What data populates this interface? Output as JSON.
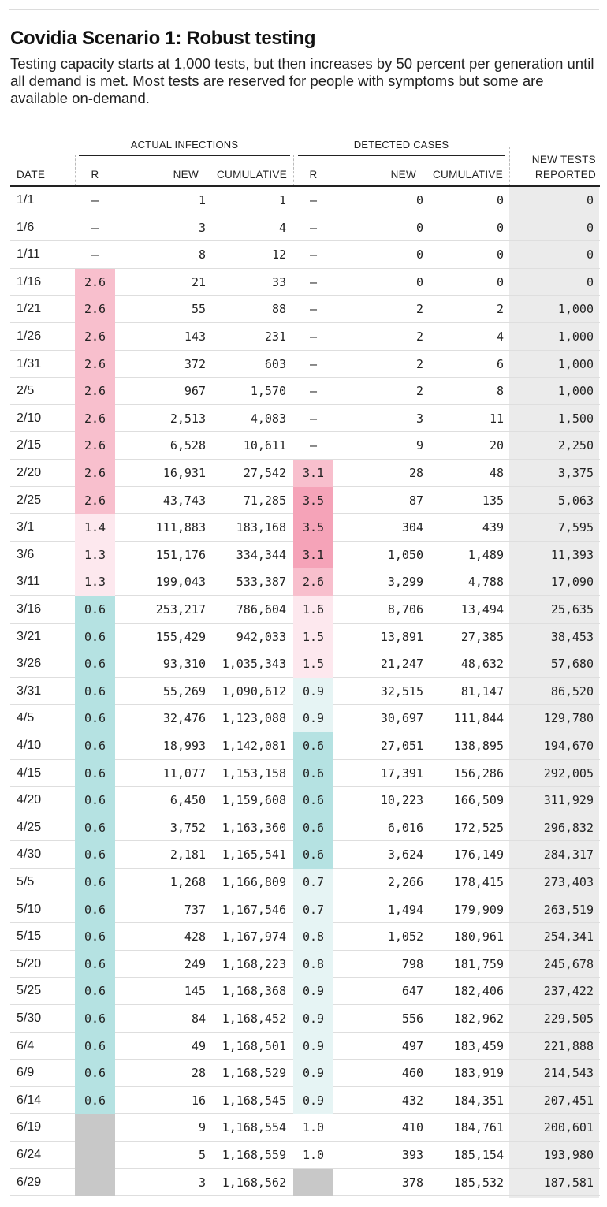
{
  "title": "Covidia Scenario 1: Robust testing",
  "subtitle": "Testing capacity starts at 1,000 tests, but then increases by 50 percent per generation until all demand is met. Most tests are reserved for people with symptoms but some are available on-demand.",
  "groups": {
    "actual": "ACTUAL INFECTIONS",
    "detected": "DETECTED CASES"
  },
  "headers": {
    "date": "DATE",
    "r": "R",
    "new": "NEW",
    "cumulative": "CUMULATIVE",
    "tests_line1": "NEW TESTS",
    "tests_line2": "REPORTED"
  },
  "colors": {
    "pink_strong": "#f5a3b8",
    "pink": "#f8bfcd",
    "pink_light": "#fde8ee",
    "teal": "#b5e2e2",
    "teal_light": "#e6f4f4",
    "gray": "#c8c8c8",
    "tests_bg": "#ebebeb"
  },
  "chart_data": {
    "type": "table",
    "columns": [
      "DATE",
      "ACTUAL INFECTIONS R",
      "ACTUAL INFECTIONS NEW",
      "ACTUAL INFECTIONS CUMULATIVE",
      "DETECTED CASES R",
      "DETECTED CASES NEW",
      "DETECTED CASES CUMULATIVE",
      "NEW TESTS REPORTED"
    ],
    "rows": [
      [
        "1/1",
        "–",
        "1",
        "1",
        "–",
        "0",
        "0",
        "0"
      ],
      [
        "1/6",
        "–",
        "3",
        "4",
        "–",
        "0",
        "0",
        "0"
      ],
      [
        "1/11",
        "–",
        "8",
        "12",
        "–",
        "0",
        "0",
        "0"
      ],
      [
        "1/16",
        "2.6",
        "21",
        "33",
        "–",
        "0",
        "0",
        "0"
      ],
      [
        "1/21",
        "2.6",
        "55",
        "88",
        "–",
        "2",
        "2",
        "1,000"
      ],
      [
        "1/26",
        "2.6",
        "143",
        "231",
        "–",
        "2",
        "4",
        "1,000"
      ],
      [
        "1/31",
        "2.6",
        "372",
        "603",
        "–",
        "2",
        "6",
        "1,000"
      ],
      [
        "2/5",
        "2.6",
        "967",
        "1,570",
        "–",
        "2",
        "8",
        "1,000"
      ],
      [
        "2/10",
        "2.6",
        "2,513",
        "4,083",
        "–",
        "3",
        "11",
        "1,500"
      ],
      [
        "2/15",
        "2.6",
        "6,528",
        "10,611",
        "–",
        "9",
        "20",
        "2,250"
      ],
      [
        "2/20",
        "2.6",
        "16,931",
        "27,542",
        "3.1",
        "28",
        "48",
        "3,375"
      ],
      [
        "2/25",
        "2.6",
        "43,743",
        "71,285",
        "3.5",
        "87",
        "135",
        "5,063"
      ],
      [
        "3/1",
        "1.4",
        "111,883",
        "183,168",
        "3.5",
        "304",
        "439",
        "7,595"
      ],
      [
        "3/6",
        "1.3",
        "151,176",
        "334,344",
        "3.1",
        "1,050",
        "1,489",
        "11,393"
      ],
      [
        "3/11",
        "1.3",
        "199,043",
        "533,387",
        "2.6",
        "3,299",
        "4,788",
        "17,090"
      ],
      [
        "3/16",
        "0.6",
        "253,217",
        "786,604",
        "1.6",
        "8,706",
        "13,494",
        "25,635"
      ],
      [
        "3/21",
        "0.6",
        "155,429",
        "942,033",
        "1.5",
        "13,891",
        "27,385",
        "38,453"
      ],
      [
        "3/26",
        "0.6",
        "93,310",
        "1,035,343",
        "1.5",
        "21,247",
        "48,632",
        "57,680"
      ],
      [
        "3/31",
        "0.6",
        "55,269",
        "1,090,612",
        "0.9",
        "32,515",
        "81,147",
        "86,520"
      ],
      [
        "4/5",
        "0.6",
        "32,476",
        "1,123,088",
        "0.9",
        "30,697",
        "111,844",
        "129,780"
      ],
      [
        "4/10",
        "0.6",
        "18,993",
        "1,142,081",
        "0.6",
        "27,051",
        "138,895",
        "194,670"
      ],
      [
        "4/15",
        "0.6",
        "11,077",
        "1,153,158",
        "0.6",
        "17,391",
        "156,286",
        "292,005"
      ],
      [
        "4/20",
        "0.6",
        "6,450",
        "1,159,608",
        "0.6",
        "10,223",
        "166,509",
        "311,929"
      ],
      [
        "4/25",
        "0.6",
        "3,752",
        "1,163,360",
        "0.6",
        "6,016",
        "172,525",
        "296,832"
      ],
      [
        "4/30",
        "0.6",
        "2,181",
        "1,165,541",
        "0.6",
        "3,624",
        "176,149",
        "284,317"
      ],
      [
        "5/5",
        "0.6",
        "1,268",
        "1,166,809",
        "0.7",
        "2,266",
        "178,415",
        "273,403"
      ],
      [
        "5/10",
        "0.6",
        "737",
        "1,167,546",
        "0.7",
        "1,494",
        "179,909",
        "263,519"
      ],
      [
        "5/15",
        "0.6",
        "428",
        "1,167,974",
        "0.8",
        "1,052",
        "180,961",
        "254,341"
      ],
      [
        "5/20",
        "0.6",
        "249",
        "1,168,223",
        "0.8",
        "798",
        "181,759",
        "245,678"
      ],
      [
        "5/25",
        "0.6",
        "145",
        "1,168,368",
        "0.9",
        "647",
        "182,406",
        "237,422"
      ],
      [
        "5/30",
        "0.6",
        "84",
        "1,168,452",
        "0.9",
        "556",
        "182,962",
        "229,505"
      ],
      [
        "6/4",
        "0.6",
        "49",
        "1,168,501",
        "0.9",
        "497",
        "183,459",
        "221,888"
      ],
      [
        "6/9",
        "0.6",
        "28",
        "1,168,529",
        "0.9",
        "460",
        "183,919",
        "214,543"
      ],
      [
        "6/14",
        "0.6",
        "16",
        "1,168,545",
        "0.9",
        "432",
        "184,351",
        "207,451"
      ],
      [
        "6/19",
        "",
        "9",
        "1,168,554",
        "1.0",
        "410",
        "184,761",
        "200,601"
      ],
      [
        "6/24",
        "",
        "5",
        "1,168,559",
        "1.0",
        "393",
        "185,154",
        "193,980"
      ],
      [
        "6/29",
        "",
        "3",
        "1,168,562",
        "",
        "378",
        "185,532",
        "187,581"
      ]
    ],
    "r_actual_shade": [
      "none",
      "none",
      "none",
      "pink",
      "pink",
      "pink",
      "pink",
      "pink",
      "pink",
      "pink",
      "pink",
      "pink",
      "pink_light",
      "pink_light",
      "pink_light",
      "teal",
      "teal",
      "teal",
      "teal",
      "teal",
      "teal",
      "teal",
      "teal",
      "teal",
      "teal",
      "teal",
      "teal",
      "teal",
      "teal",
      "teal",
      "teal",
      "teal",
      "teal",
      "teal",
      "gray",
      "gray",
      "gray"
    ],
    "r_detected_shade": [
      "none",
      "none",
      "none",
      "none",
      "none",
      "none",
      "none",
      "none",
      "none",
      "none",
      "pink",
      "pink_strong",
      "pink_strong",
      "pink_strong",
      "pink",
      "pink_light",
      "pink_light",
      "pink_light",
      "teal_light",
      "teal_light",
      "teal",
      "teal",
      "teal",
      "teal",
      "teal",
      "teal_light",
      "teal_light",
      "teal_light",
      "teal_light",
      "teal_light",
      "teal_light",
      "teal_light",
      "teal_light",
      "teal_light",
      "none",
      "none",
      "gray"
    ]
  }
}
